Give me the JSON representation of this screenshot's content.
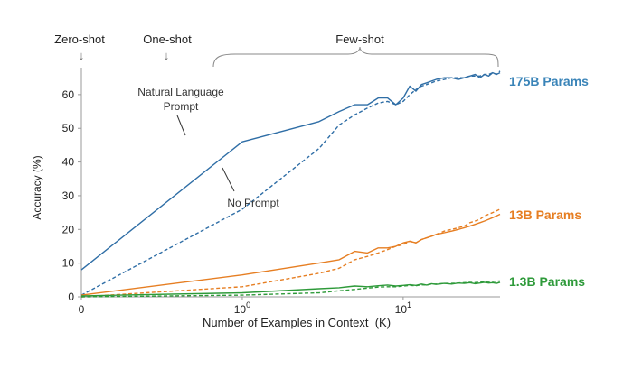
{
  "chart_data": {
    "type": "line",
    "xlabel": "Number of Examples in Context  (K)",
    "ylabel": "Accuracy (%)",
    "ylim": [
      0,
      68
    ],
    "x_scale": "symlog",
    "x_range": [
      0,
      40
    ],
    "y_ticks": [
      0,
      10,
      20,
      30,
      40,
      50,
      60
    ],
    "x_ticks": [
      {
        "value": 0,
        "base": "0",
        "exp": ""
      },
      {
        "value": 1,
        "base": "10",
        "exp": "0"
      },
      {
        "value": 10,
        "base": "10",
        "exp": "1"
      }
    ],
    "grid": false,
    "regions": [
      {
        "label": "Zero-shot",
        "marker": "↓"
      },
      {
        "label": "One-shot",
        "marker": "↓"
      },
      {
        "label": "Few-shot",
        "marker": ""
      }
    ],
    "annotations": [
      {
        "line1": "Natural Language",
        "line2": "Prompt"
      },
      {
        "line1": "No Prompt",
        "line2": ""
      }
    ],
    "series": [
      {
        "name": "175B Params",
        "color": "#2f6ea6",
        "style": "solid",
        "x": [
          0,
          1,
          3,
          4,
          5,
          6,
          7,
          8,
          9,
          10,
          11,
          12,
          13,
          14,
          15,
          16,
          18,
          20,
          22,
          24,
          26,
          28,
          30,
          32,
          34,
          36,
          38,
          40
        ],
        "y": [
          8,
          46,
          52,
          55,
          57,
          57,
          59,
          59,
          57,
          59,
          62.5,
          61,
          63,
          63.5,
          64,
          64.5,
          65,
          65,
          64.5,
          65,
          65.5,
          66,
          65,
          66,
          65.5,
          66.5,
          66,
          66.5
        ]
      },
      {
        "name": "",
        "color": "#2f6ea6",
        "style": "dashed",
        "x": [
          0,
          1,
          3,
          4,
          5,
          6,
          7,
          8,
          9,
          10,
          11,
          12,
          13,
          14,
          15,
          16,
          18,
          20,
          22,
          24,
          26,
          28,
          30,
          32,
          34,
          36,
          38,
          40
        ],
        "y": [
          0.5,
          26,
          44,
          51,
          54,
          56,
          57.5,
          58,
          57,
          58,
          60,
          61.5,
          62.5,
          63,
          63.5,
          64,
          64.5,
          65,
          65,
          65,
          65.5,
          65.5,
          65.5,
          66,
          66,
          66.5,
          66,
          67
        ]
      },
      {
        "name": "13B Params",
        "color": "#e67e22",
        "style": "solid",
        "x": [
          0,
          1,
          3,
          4,
          5,
          6,
          7,
          8,
          9,
          10,
          11,
          12,
          13,
          14,
          15,
          16,
          18,
          20,
          22,
          24,
          26,
          28,
          30,
          32,
          34,
          36,
          38,
          40
        ],
        "y": [
          0.5,
          6.5,
          10,
          11,
          13.5,
          13,
          14.5,
          14.5,
          15,
          16,
          16.5,
          16,
          17,
          17.5,
          18,
          18.5,
          19,
          19.5,
          20,
          20.5,
          21,
          21.5,
          22,
          22.5,
          23,
          23.5,
          24,
          24.5
        ]
      },
      {
        "name": "",
        "color": "#e67e22",
        "style": "dashed",
        "x": [
          0,
          1,
          3,
          4,
          5,
          6,
          7,
          8,
          9,
          10,
          11,
          12,
          13,
          14,
          15,
          16,
          18,
          20,
          22,
          24,
          26,
          28,
          30,
          32,
          34,
          36,
          38,
          40
        ],
        "y": [
          0,
          3,
          7,
          8.5,
          11,
          12,
          13,
          14,
          15,
          15.5,
          16.5,
          16,
          17,
          17.5,
          18,
          18.5,
          19.5,
          20,
          20.5,
          21,
          22,
          22.5,
          23,
          24,
          24.5,
          25,
          25.5,
          26
        ]
      },
      {
        "name": "1.3B Params",
        "color": "#2e9a3a",
        "style": "solid",
        "x": [
          0,
          1,
          3,
          4,
          5,
          6,
          7,
          8,
          9,
          10,
          11,
          12,
          13,
          14,
          15,
          16,
          18,
          20,
          22,
          24,
          26,
          28,
          30,
          32,
          34,
          36,
          38,
          40
        ],
        "y": [
          0.3,
          1.2,
          2.4,
          2.7,
          3.2,
          3.0,
          3.3,
          3.5,
          3.2,
          3.4,
          3.6,
          3.4,
          3.8,
          3.5,
          3.9,
          3.7,
          4.0,
          3.8,
          4.1,
          4.0,
          4.2,
          3.9,
          4.1,
          4.3,
          4.1,
          4.2,
          4.0,
          4.3
        ]
      },
      {
        "name": "",
        "color": "#2e9a3a",
        "style": "dashed",
        "x": [
          0,
          1,
          3,
          4,
          5,
          6,
          7,
          8,
          9,
          10,
          11,
          12,
          13,
          14,
          15,
          16,
          18,
          20,
          22,
          24,
          26,
          28,
          30,
          32,
          34,
          36,
          38,
          40
        ],
        "y": [
          0,
          0.5,
          1.2,
          1.8,
          2.2,
          2.6,
          2.9,
          3.0,
          3.0,
          3.2,
          3.4,
          3.3,
          3.6,
          3.5,
          3.8,
          3.8,
          4.0,
          4.0,
          4.1,
          4.2,
          4.3,
          4.2,
          4.4,
          4.5,
          4.5,
          4.6,
          4.6,
          4.7
        ]
      }
    ]
  }
}
